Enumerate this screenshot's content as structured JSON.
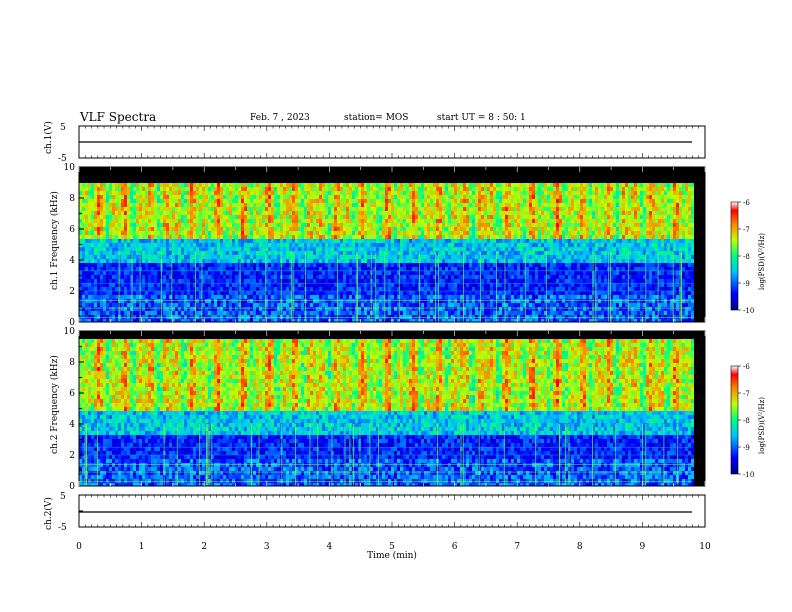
{
  "header": {
    "title": "VLF Spectra",
    "date": "Feb. 7 , 2023",
    "station": "station= MOS",
    "start_ut": "start UT = 8 : 50: 1"
  },
  "chart_data": [
    {
      "type": "line",
      "panel": "ch1-waveform",
      "ylabel": "ch.1(V)",
      "ylim": [
        -5,
        5
      ],
      "yticks": [
        "5",
        "-5"
      ],
      "series": [
        {
          "values": [
            0,
            0
          ]
        }
      ],
      "x": [
        0,
        9.8
      ]
    },
    {
      "type": "heatmap",
      "panel": "ch1-spectrogram",
      "ylabel": "ch.1 Frequency (kHz)",
      "ylim": [
        0,
        10
      ],
      "yticks": [
        "0",
        "2",
        "4",
        "6",
        "8",
        "10"
      ],
      "xlim": [
        0,
        9.8
      ],
      "colorbar": {
        "label": "log(PSD)(V²/Hz)",
        "range": [
          -10,
          -6
        ],
        "ticks": [
          "-6",
          "-7",
          "-8",
          "-9",
          "-10"
        ]
      }
    },
    {
      "type": "heatmap",
      "panel": "ch2-spectrogram",
      "ylabel": "ch.2 Frequency (kHz)",
      "ylim": [
        0,
        10
      ],
      "yticks": [
        "0",
        "2",
        "4",
        "6",
        "8",
        "10"
      ],
      "xlim": [
        0,
        9.8
      ],
      "colorbar": {
        "label": "log(PSD)(V²/Hz)",
        "range": [
          -10,
          -6
        ],
        "ticks": [
          "-6",
          "-7",
          "-8",
          "-9",
          "-10"
        ]
      }
    },
    {
      "type": "line",
      "panel": "ch2-waveform",
      "ylabel": "ch.2(V)",
      "ylim": [
        -5,
        5
      ],
      "yticks": [
        "5",
        "-5"
      ],
      "series": [
        {
          "values": [
            0,
            0
          ]
        }
      ],
      "x": [
        0,
        9.8
      ]
    }
  ],
  "xaxis": {
    "label": "Time (min)",
    "range": [
      0,
      10
    ],
    "ticks": [
      "0",
      "1",
      "2",
      "3",
      "4",
      "5",
      "6",
      "7",
      "8",
      "9",
      "10"
    ]
  }
}
